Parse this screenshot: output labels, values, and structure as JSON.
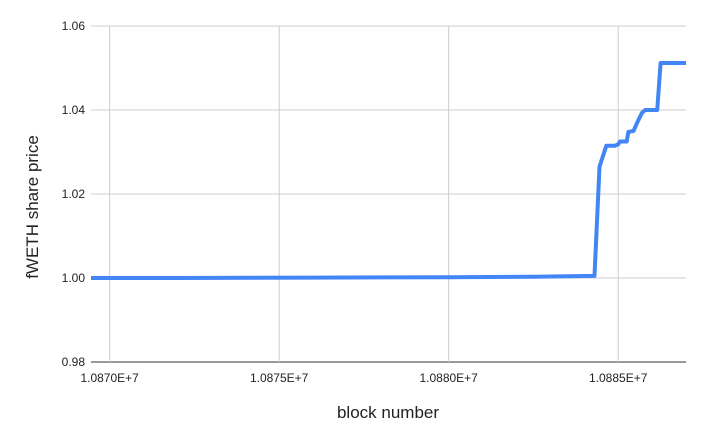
{
  "chart_data": {
    "type": "line",
    "title": "",
    "xlabel": "block number",
    "ylabel": "fWETH share price",
    "xlim": [
      10869450,
      10887000
    ],
    "ylim": [
      0.98,
      1.06
    ],
    "x_ticks": [
      10870000,
      10875000,
      10880000,
      10885000
    ],
    "x_tick_labels": [
      "1.0870E+7",
      "1.0875E+7",
      "1.0880E+7",
      "1.0885E+7"
    ],
    "y_ticks": [
      0.98,
      1.0,
      1.02,
      1.04,
      1.06
    ],
    "y_tick_labels": [
      "0.98",
      "1.00",
      "1.02",
      "1.04",
      "1.06"
    ],
    "grid": true,
    "legend": "none",
    "series": [
      {
        "color": "#4285f4",
        "points": [
          [
            10869450,
            1.0
          ],
          [
            10872000,
            1.0
          ],
          [
            10876000,
            1.0001
          ],
          [
            10880000,
            1.0002
          ],
          [
            10882500,
            1.0003
          ],
          [
            10884300,
            1.0005
          ],
          [
            10884450,
            1.0265
          ],
          [
            10884650,
            1.0315
          ],
          [
            10884900,
            1.0315
          ],
          [
            10885000,
            1.0318
          ],
          [
            10885050,
            1.0325
          ],
          [
            10885250,
            1.0325
          ],
          [
            10885300,
            1.0348
          ],
          [
            10885450,
            1.035
          ],
          [
            10885550,
            1.0368
          ],
          [
            10885700,
            1.0393
          ],
          [
            10885800,
            1.04
          ],
          [
            10886150,
            1.04
          ],
          [
            10886250,
            1.0512
          ],
          [
            10887000,
            1.0512
          ]
        ]
      }
    ]
  }
}
